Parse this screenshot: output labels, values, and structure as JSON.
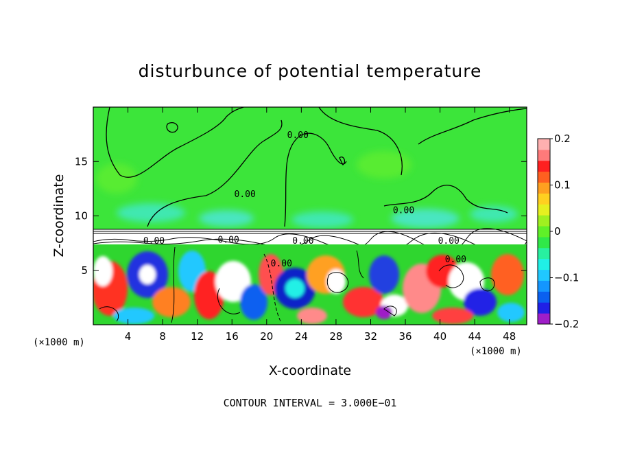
{
  "chart_data": {
    "type": "heatmap",
    "title": "disturbunce of potential temperature",
    "xlabel": "X-coordinate",
    "ylabel": "Z-coordinate",
    "x_unit": "(×1000 m)",
    "x_unit_right": "(×1000 m)",
    "xlim": [
      0,
      50
    ],
    "ylim": [
      0,
      20
    ],
    "x_ticks": [
      4,
      8,
      12,
      16,
      20,
      24,
      28,
      32,
      36,
      40,
      44,
      48
    ],
    "y_ticks": [
      5,
      10,
      15
    ],
    "colorbar": {
      "range": [
        -0.2,
        0.2
      ],
      "tick_values": [
        0.2,
        0.1,
        0,
        -0.1,
        -0.2
      ],
      "tick_labels": [
        "0.2",
        "0.1",
        "0",
        "−0.1",
        "−0.2"
      ],
      "colors": [
        "#9f1ec8",
        "#2020e6",
        "#0a60f0",
        "#1496ff",
        "#20c8ff",
        "#20f0e6",
        "#28f0a0",
        "#30e848",
        "#60f028",
        "#a0f020",
        "#e6f020",
        "#ffd020",
        "#ffa020",
        "#ff6020",
        "#ff2020",
        "#ff7a7a",
        "#ffb0b0"
      ]
    },
    "contour_labels": [
      {
        "text": "0.00",
        "x": 23.6,
        "z": 17.4
      },
      {
        "text": "0.00",
        "x": 17.5,
        "z": 12.0
      },
      {
        "text": "0.00",
        "x": 35.8,
        "z": 10.5
      },
      {
        "text": "0.00",
        "x": 7.0,
        "z": 7.7
      },
      {
        "text": "0.00",
        "x": 15.6,
        "z": 7.8
      },
      {
        "text": "0.00",
        "x": 24.2,
        "z": 7.7
      },
      {
        "text": "0.00",
        "x": 41.0,
        "z": 7.7
      },
      {
        "text": "0.00",
        "x": 21.7,
        "z": 5.6
      },
      {
        "text": "0.00",
        "x": 41.8,
        "z": 6.0
      }
    ],
    "footer": "CONTOUR INTERVAL = 3.000E−01"
  }
}
